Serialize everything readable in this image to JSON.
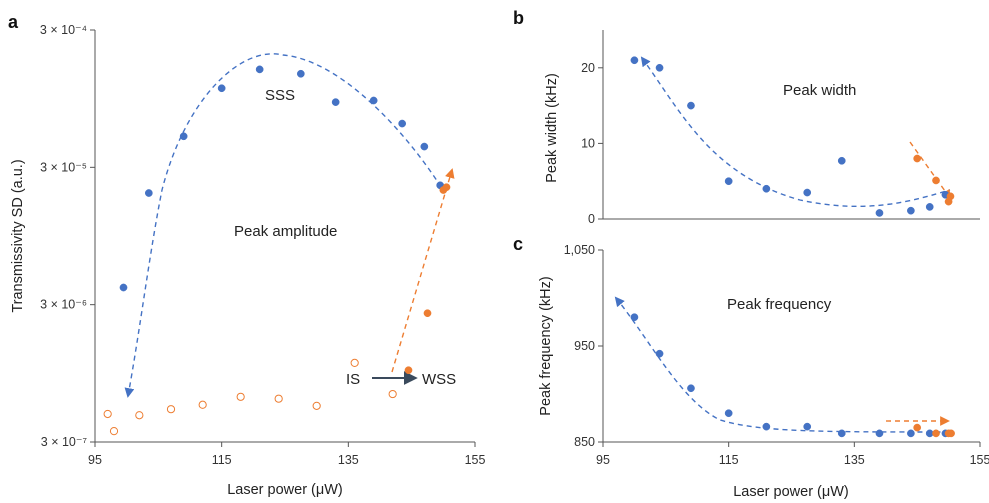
{
  "colors": {
    "blue": "#4472C4",
    "orange": "#ED7D31",
    "axis": "#555555",
    "arrow_dark": "#3A4A5C"
  },
  "chart_data": [
    {
      "panel": "a",
      "type": "scatter",
      "xlabel": "Laser power (μW)",
      "ylabel": "Transmissivity SD (a.u.)",
      "x_ticks": [
        "95",
        "115",
        "135",
        "155"
      ],
      "xlim": [
        95,
        155
      ],
      "y_scale": "log",
      "ylim": [
        3e-07,
        0.0003
      ],
      "y_ticks": [
        {
          "value": 3e-07,
          "label": "3 × 10⁻⁷"
        },
        {
          "value": 3e-06,
          "label": "3 × 10⁻⁶"
        },
        {
          "value": 3e-05,
          "label": "3 × 10⁻⁵"
        },
        {
          "value": 0.0003,
          "label": "3 × 10⁻⁴"
        }
      ],
      "annotations": [
        "SSS",
        "Peak amplitude",
        "IS",
        "WSS"
      ],
      "series": [
        {
          "color": "blue",
          "filled": true,
          "points": [
            [
              99.5,
              4e-06
            ],
            [
              103.5,
              1.95e-05
            ],
            [
              109,
              5.05e-05
            ],
            [
              115,
              0.000113
            ],
            [
              121,
              0.000155
            ],
            [
              127.5,
              0.000144
            ],
            [
              133,
              8.95e-05
            ],
            [
              139,
              9.2e-05
            ],
            [
              143.5,
              6.25e-05
            ],
            [
              147,
              4.25e-05
            ],
            [
              149.5,
              2.22e-05
            ]
          ]
        },
        {
          "color": "orange",
          "filled": true,
          "points": [
            [
              144.5,
              1e-06
            ],
            [
              147.5,
              2.6e-06
            ],
            [
              150,
              2.05e-05
            ],
            [
              150.5,
              2.15e-05
            ]
          ]
        },
        {
          "color": "orange",
          "filled": false,
          "points": [
            [
              97,
              4.8e-07
            ],
            [
              98,
              3.6e-07
            ],
            [
              102,
              4.7e-07
            ],
            [
              107,
              5.2e-07
            ],
            [
              112,
              5.6e-07
            ],
            [
              118,
              6.4e-07
            ],
            [
              124,
              6.2e-07
            ],
            [
              130,
              5.5e-07
            ],
            [
              136,
              1.13e-06
            ],
            [
              142,
              6.7e-07
            ]
          ]
        }
      ]
    },
    {
      "panel": "b",
      "type": "scatter",
      "xlabel": "",
      "ylabel": "Peak width (kHz)",
      "xlim": [
        95,
        155
      ],
      "ylim": [
        0,
        25
      ],
      "y_ticks": [
        "0",
        "10",
        "20"
      ],
      "annotations": [
        "Peak width"
      ],
      "series": [
        {
          "color": "blue",
          "filled": true,
          "points": [
            [
              100,
              21
            ],
            [
              104,
              20
            ],
            [
              109,
              15
            ],
            [
              115,
              5
            ],
            [
              121,
              4
            ],
            [
              127.5,
              3.5
            ],
            [
              133,
              7.7
            ],
            [
              139,
              0.8
            ],
            [
              144,
              1.1
            ],
            [
              147,
              1.6
            ],
            [
              149.5,
              3.2
            ]
          ]
        },
        {
          "color": "orange",
          "filled": true,
          "points": [
            [
              145,
              8
            ],
            [
              148,
              5.1
            ],
            [
              150,
              2.3
            ],
            [
              150.3,
              3
            ]
          ]
        }
      ]
    },
    {
      "panel": "c",
      "type": "scatter",
      "xlabel": "Laser power (μW)",
      "ylabel": "Peak frequency (kHz)",
      "x_ticks": [
        "95",
        "115",
        "135",
        "155"
      ],
      "xlim": [
        95,
        155
      ],
      "ylim": [
        850,
        1050
      ],
      "y_ticks": [
        "850",
        "950",
        "1,050"
      ],
      "annotations": [
        "Peak frequency"
      ],
      "series": [
        {
          "color": "blue",
          "filled": true,
          "points": [
            [
              100,
              980
            ],
            [
              104,
              942
            ],
            [
              109,
              906
            ],
            [
              115,
              880
            ],
            [
              121,
              866
            ],
            [
              127.5,
              866
            ],
            [
              133,
              859
            ],
            [
              139,
              859
            ],
            [
              144,
              859
            ],
            [
              147,
              859
            ],
            [
              149.5,
              859
            ]
          ]
        },
        {
          "color": "orange",
          "filled": true,
          "points": [
            [
              145,
              865
            ],
            [
              148,
              859
            ],
            [
              150,
              859
            ],
            [
              150.4,
              859
            ]
          ]
        }
      ]
    }
  ]
}
